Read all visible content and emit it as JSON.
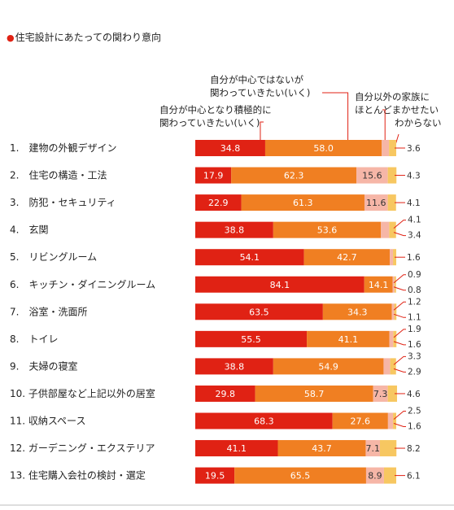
{
  "title": "住宅設計にあたっての関わり意向",
  "chart_data": {
    "type": "bar",
    "stacked": true,
    "orientation": "horizontal",
    "title": "住宅設計にあたっての関わり意向",
    "xlim": [
      0,
      100
    ],
    "categories": [
      "1.　建物の外観デザイン",
      "2.　住宅の構造・工法",
      "3.　防犯・セキュリティ",
      "4.　玄関",
      "5.　リビングルーム",
      "6.　キッチン・ダイニングルーム",
      "7.　浴室・洗面所",
      "8.　トイレ",
      "9.　夫婦の寝室",
      "10. 子供部屋など上記以外の居室",
      "11. 収納スペース",
      "12. ガーデニング・エクステリア",
      "13. 住宅購入会社の検討・選定"
    ],
    "series": [
      {
        "name": "自分が中心となり積極的に関わっていきたい(いく)",
        "color": "#e02214",
        "values": [
          34.8,
          17.9,
          22.9,
          38.8,
          54.1,
          84.1,
          63.5,
          55.5,
          38.8,
          29.8,
          68.3,
          41.1,
          19.5
        ]
      },
      {
        "name": "自分が中心ではないが関わっていきたい(いく)",
        "color": "#f07f22",
        "values": [
          58.0,
          62.3,
          61.3,
          53.6,
          42.7,
          14.1,
          34.3,
          41.1,
          54.9,
          58.7,
          27.6,
          43.7,
          65.5
        ]
      },
      {
        "name": "自分以外の家族にほとんどまかせたい",
        "color": "#f6b6a7",
        "values": [
          3.6,
          15.6,
          11.6,
          4.1,
          1.6,
          0.9,
          1.2,
          1.9,
          3.3,
          7.3,
          2.5,
          7.1,
          8.9
        ]
      },
      {
        "name": "わからない",
        "color": "#f7c761",
        "values": [
          3.6,
          4.3,
          4.1,
          3.4,
          1.6,
          0.8,
          1.1,
          1.6,
          2.9,
          4.6,
          1.6,
          8.2,
          6.1
        ]
      }
    ],
    "segment_labels": [
      [
        "34.8",
        "58.0",
        "",
        ""
      ],
      [
        "17.9",
        "62.3",
        "15.6",
        ""
      ],
      [
        "22.9",
        "61.3",
        "11.6",
        ""
      ],
      [
        "38.8",
        "53.6",
        "",
        ""
      ],
      [
        "54.1",
        "42.7",
        "",
        ""
      ],
      [
        "84.1",
        "14.1",
        "",
        ""
      ],
      [
        "63.5",
        "34.3",
        "",
        ""
      ],
      [
        "55.5",
        "41.1",
        "",
        ""
      ],
      [
        "38.8",
        "54.9",
        "",
        ""
      ],
      [
        "29.8",
        "58.7",
        "7.3",
        ""
      ],
      [
        "68.3",
        "27.6",
        "",
        ""
      ],
      [
        "41.1",
        "43.7",
        "7.1",
        ""
      ],
      [
        "19.5",
        "65.5",
        "8.9",
        ""
      ]
    ],
    "side_labels": [
      [
        "3.6"
      ],
      [
        "4.3"
      ],
      [
        "4.1"
      ],
      [
        "4.1",
        "3.4"
      ],
      [
        "1.6"
      ],
      [
        "0.9",
        "0.8"
      ],
      [
        "1.2",
        "1.1"
      ],
      [
        "1.9",
        "1.6"
      ],
      [
        "3.3",
        "2.9"
      ],
      [
        "4.6"
      ],
      [
        "2.5",
        "1.6"
      ],
      [
        "8.2"
      ],
      [
        "6.1"
      ]
    ],
    "legend_callouts": [
      {
        "lines": [
          "自分が中心となり積極的に",
          "関わっていきたい(いく)"
        ],
        "series": 0
      },
      {
        "lines": [
          "自分が中心ではないが",
          "関わっていきたい(いく)"
        ],
        "series": 1
      },
      {
        "lines": [
          "自分以外の家族に",
          "ほとんどまかせたい"
        ],
        "series": 2
      },
      {
        "lines": [
          "わからない"
        ],
        "series": 3
      }
    ]
  }
}
